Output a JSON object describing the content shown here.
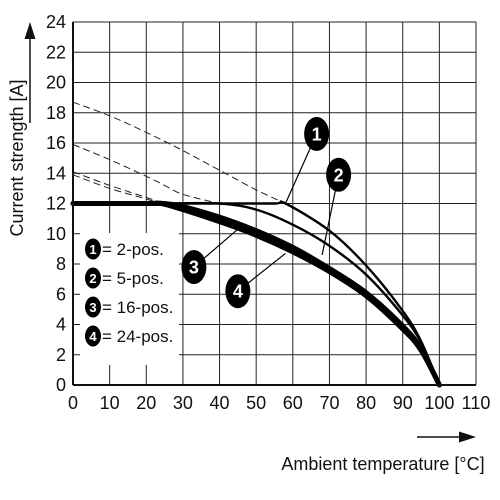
{
  "chart_data": {
    "type": "line",
    "title": "",
    "xlabel": "Ambient temperature [°C]",
    "ylabel": "Current strength [A]",
    "xlim": [
      0,
      110
    ],
    "ylim": [
      0,
      24
    ],
    "x_ticks": [
      0,
      10,
      20,
      30,
      40,
      50,
      60,
      70,
      80,
      90,
      100,
      110
    ],
    "y_ticks": [
      0,
      2,
      4,
      6,
      8,
      10,
      12,
      14,
      16,
      18,
      20,
      22,
      24
    ],
    "grid": true,
    "legend_position": "left",
    "legend": [
      {
        "number": "1",
        "label": "= 2-pos."
      },
      {
        "number": "2",
        "label": "= 5-pos."
      },
      {
        "number": "3",
        "label": "= 16-pos."
      },
      {
        "number": "4",
        "label": "= 24-pos."
      }
    ],
    "series": [
      {
        "marker": "1",
        "x": [
          0,
          20,
          40,
          55,
          58,
          70,
          80,
          90,
          95,
          100
        ],
        "values": [
          12,
          12,
          12,
          12,
          12,
          10.2,
          7.9,
          4.9,
          2.9,
          0
        ],
        "derating_x": [
          0,
          10,
          20,
          30,
          40,
          50,
          58
        ],
        "derating_values": [
          18.7,
          17.8,
          16.7,
          15.5,
          14.2,
          12.9,
          12
        ]
      },
      {
        "marker": "2",
        "x": [
          0,
          25,
          40,
          50,
          60,
          70,
          80,
          90,
          95,
          100
        ],
        "values": [
          12,
          12,
          12,
          11.6,
          10.6,
          9.2,
          7.3,
          4.6,
          2.8,
          0
        ],
        "derating_x": [
          0,
          10,
          20,
          25,
          30,
          40
        ],
        "derating_values": [
          15.9,
          14.9,
          13.8,
          13.2,
          12.6,
          12
        ]
      },
      {
        "marker": "3",
        "x": [
          0,
          20,
          25,
          30,
          40,
          50,
          60,
          70,
          80,
          90,
          95,
          100
        ],
        "values": [
          12,
          12,
          12,
          11.8,
          11.1,
          10.2,
          9.1,
          7.7,
          6.1,
          3.9,
          2.4,
          0
        ],
        "derating_x": [
          0,
          10,
          20,
          25
        ],
        "derating_values": [
          14.1,
          13.2,
          12.4,
          12
        ]
      },
      {
        "marker": "4",
        "x": [
          0,
          20,
          24,
          30,
          40,
          50,
          60,
          70,
          80,
          90,
          95,
          100
        ],
        "values": [
          12,
          12,
          12,
          11.6,
          10.8,
          9.9,
          8.8,
          7.5,
          5.9,
          3.7,
          2.3,
          0
        ],
        "derating_x": [
          0,
          10,
          20,
          24
        ],
        "derating_values": [
          13.9,
          13,
          12.3,
          12
        ]
      }
    ],
    "callouts": [
      {
        "marker": "1",
        "x": 66.5,
        "y": 16.6,
        "target_x": 58,
        "target_y": 12.0
      },
      {
        "marker": "2",
        "x": 72.5,
        "y": 13.9,
        "target_x": 68,
        "target_y": 8.6
      },
      {
        "marker": "3",
        "x": 33,
        "y": 7.8,
        "target_x": 45,
        "target_y": 10.3
      },
      {
        "marker": "4",
        "x": 45,
        "y": 6.2,
        "target_x": 58,
        "target_y": 8.7
      }
    ]
  }
}
